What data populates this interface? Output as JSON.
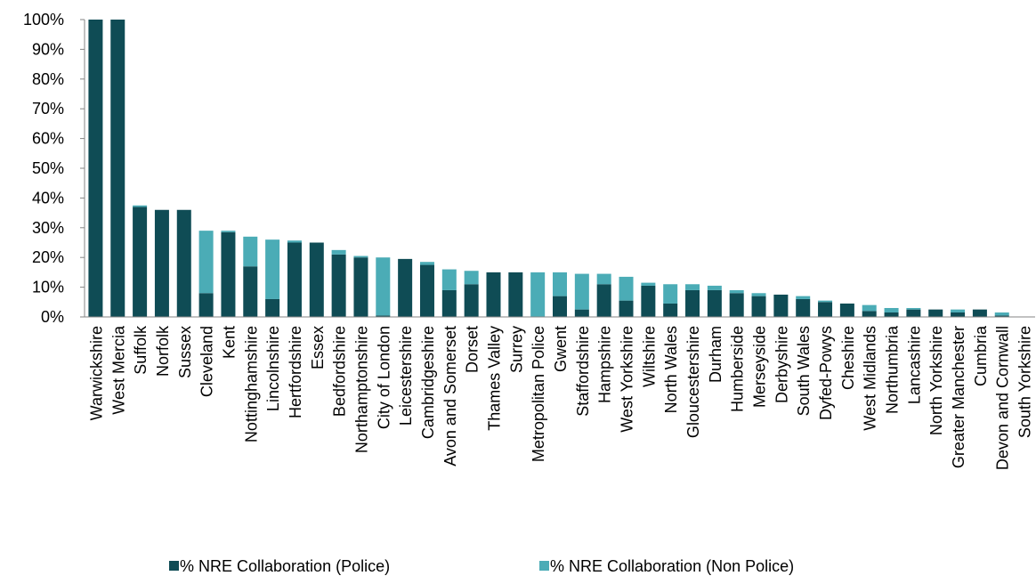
{
  "chart_data": {
    "type": "stacked_bar",
    "categories": [
      "Warwickshire",
      "West Mercia",
      "Suffolk",
      "Norfolk",
      "Sussex",
      "Cleveland",
      "Kent",
      "Nottinghamshire",
      "Lincolnshire",
      "Hertfordshire",
      "Essex",
      "Bedfordshire",
      "Northamptonshire",
      "City of London",
      "Leicestershire",
      "Cambridgeshire",
      "Avon and Somerset",
      "Dorset",
      "Thames Valley",
      "Surrey",
      "Metropolitan Police",
      "Gwent",
      "Staffordshire",
      "Hampshire",
      "West Yorkshire",
      "Wiltshire",
      "North Wales",
      "Gloucestershire",
      "Durham",
      "Humberside",
      "Merseyside",
      "Derbyshire",
      "South Wales",
      "Dyfed-Powys",
      "Cheshire",
      "West Midlands",
      "Northumbria",
      "Lancashire",
      "North Yorkshire",
      "Greater Manchester",
      "Cumbria",
      "Devon and Cornwall",
      "South Yorkshire"
    ],
    "series": [
      {
        "name": "% NRE Collaboration (Police)",
        "color": "#0f4c55",
        "values": [
          100,
          100,
          37,
          36,
          36,
          8,
          28.5,
          17,
          6,
          25,
          25,
          21,
          20,
          0.5,
          19.5,
          17.5,
          9,
          11,
          15,
          15,
          0,
          7,
          2.5,
          11,
          5.5,
          10.5,
          4.5,
          9,
          9,
          8,
          7,
          7.5,
          6,
          5,
          4.5,
          2,
          1.5,
          2.5,
          2.5,
          1.5,
          2.5,
          0.5,
          0
        ]
      },
      {
        "name": "% NRE Collaboration (Non Police)",
        "color": "#4bacb6",
        "values": [
          0,
          0,
          0.5,
          0,
          0,
          21,
          0.5,
          10,
          20,
          0.7,
          0,
          1.5,
          0.5,
          19.5,
          0,
          1,
          7,
          4.5,
          0,
          0,
          15,
          8,
          12,
          3.5,
          8,
          1,
          6.5,
          2,
          1.5,
          1,
          1,
          0,
          1,
          0.5,
          0,
          2,
          1.5,
          0.5,
          0,
          1,
          0,
          1,
          0
        ]
      }
    ],
    "ylim": [
      0,
      100
    ],
    "yticks": [
      {
        "value": 0,
        "label": "0%"
      },
      {
        "value": 10,
        "label": "10%"
      },
      {
        "value": 20,
        "label": "20%"
      },
      {
        "value": 30,
        "label": "30%"
      },
      {
        "value": 40,
        "label": "40%"
      },
      {
        "value": 50,
        "label": "50%"
      },
      {
        "value": 60,
        "label": "60%"
      },
      {
        "value": 70,
        "label": "70%"
      },
      {
        "value": 80,
        "label": "80%"
      },
      {
        "value": 90,
        "label": "90%"
      },
      {
        "value": 100,
        "label": "100%"
      }
    ],
    "legend": "bottom"
  }
}
